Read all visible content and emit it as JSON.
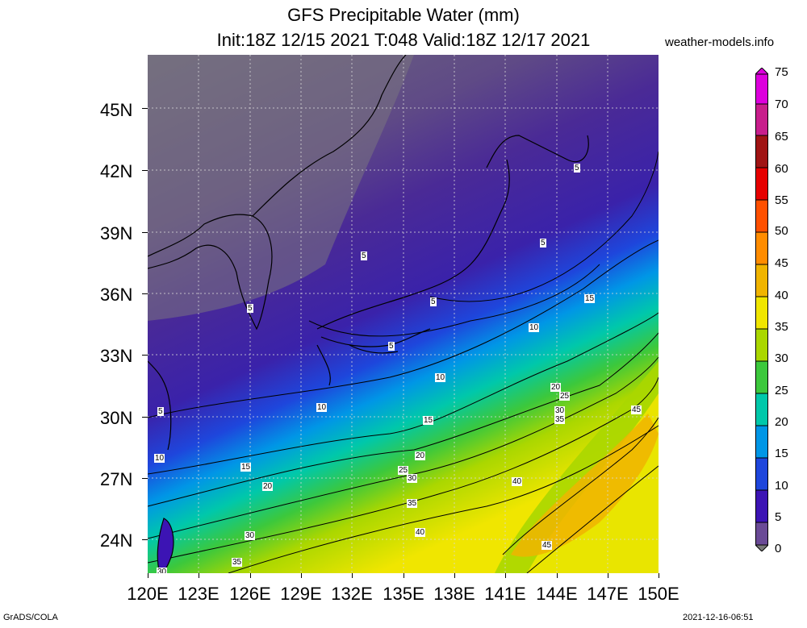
{
  "title": {
    "line1": "GFS Precipitable Water (mm)",
    "line2": "Init:18Z 12/15 2021 T:048 Valid:18Z 12/17 2021"
  },
  "site": "weather-models.info",
  "footer": {
    "left": "GrADS/COLA",
    "right": "2021-12-16-06:51"
  },
  "map": {
    "lat_labels": [
      "45N",
      "42N",
      "39N",
      "36N",
      "33N",
      "30N",
      "27N",
      "24N"
    ],
    "lon_labels": [
      "120E",
      "123E",
      "126E",
      "129E",
      "132E",
      "135E",
      "138E",
      "141E",
      "144E",
      "147E",
      "150E"
    ],
    "contour_labels": [
      "5",
      "5",
      "5",
      "5",
      "5",
      "5",
      "5",
      "10",
      "10",
      "10",
      "10",
      "15",
      "15",
      "15",
      "20",
      "20",
      "20",
      "25",
      "25",
      "30",
      "30",
      "30",
      "35",
      "35",
      "35",
      "40",
      "40",
      "45",
      "45",
      "30"
    ]
  },
  "colorbar": {
    "labels": [
      "75",
      "70",
      "65",
      "60",
      "55",
      "50",
      "45",
      "40",
      "35",
      "30",
      "25",
      "20",
      "15",
      "10",
      "5",
      "0"
    ],
    "colors": [
      "#dd00dd",
      "#c81e8c",
      "#a01414",
      "#e60000",
      "#ff5000",
      "#ff8c00",
      "#f0b400",
      "#f0e600",
      "#aad700",
      "#3cc83c",
      "#00c8aa",
      "#0096e6",
      "#1e46dc",
      "#3c14b4",
      "#6a4a96",
      "#7a7a7a"
    ]
  }
}
